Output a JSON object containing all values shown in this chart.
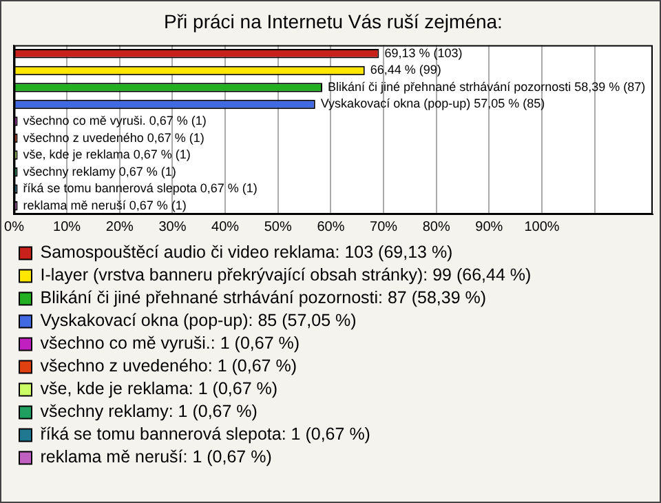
{
  "chart_data": {
    "type": "bar",
    "orientation": "horizontal",
    "title": "Při práci na Internetu Vás ruší zejména:",
    "categories": [
      null,
      null,
      null,
      null,
      null,
      null,
      null,
      null,
      null,
      null
    ],
    "series": [
      {
        "name": "Samospouštěcí audio či video reklama: 103 (69,13 %)",
        "color": "#c8201a",
        "values": [
          69.13,
          null,
          null,
          null,
          null,
          null,
          null,
          null,
          null,
          null
        ],
        "value_labels": [
          "69,13 % (103)",
          null,
          null,
          null,
          null,
          null,
          null,
          null,
          null,
          null
        ]
      },
      {
        "name": "I-layer (vrstva banneru překrývající obsah stránky): 99 (66,44 %)",
        "color": "#ffe600",
        "values": [
          null,
          66.44,
          null,
          null,
          null,
          null,
          null,
          null,
          null,
          null
        ],
        "value_labels": [
          null,
          "66,44 % (99)",
          null,
          null,
          null,
          null,
          null,
          null,
          null,
          null
        ]
      },
      {
        "name": "Blikání či jiné přehnané strhávání pozornosti: 87 (58,39 %)",
        "color": "#22b022",
        "values": [
          null,
          null,
          58.39,
          null,
          null,
          null,
          null,
          null,
          null,
          null
        ],
        "value_labels": [
          null,
          null,
          "Blikání či jiné přehnané strhávání pozornosti 58,39 % (87)",
          null,
          null,
          null,
          null,
          null,
          null,
          null
        ]
      },
      {
        "name": "Vyskakovací okna (pop-up): 85 (57,05 %)",
        "color": "#4169e1",
        "values": [
          null,
          null,
          null,
          57.05,
          null,
          null,
          null,
          null,
          null,
          null
        ],
        "value_labels": [
          null,
          null,
          null,
          "Vyskakovací okna (pop-up) 57,05 % (85)",
          null,
          null,
          null,
          null,
          null,
          null
        ]
      },
      {
        "name": "všechno co mě vyruši.: 1 (0,67 %)",
        "color": "#c020c0",
        "values": [
          null,
          null,
          null,
          null,
          0.67,
          null,
          null,
          null,
          null,
          null
        ],
        "value_labels": [
          null,
          null,
          null,
          null,
          "všechno co mě vyruši. 0,67 % (1)",
          null,
          null,
          null,
          null,
          null
        ]
      },
      {
        "name": "všechno z uvedeného: 1 (0,67 %)",
        "color": "#e04010",
        "values": [
          null,
          null,
          null,
          null,
          null,
          0.67,
          null,
          null,
          null,
          null
        ],
        "value_labels": [
          null,
          null,
          null,
          null,
          null,
          "všechno z uvedeného 0,67 % (1)",
          null,
          null,
          null,
          null
        ]
      },
      {
        "name": "vše, kde je reklama: 1 (0,67 %)",
        "color": "#ccff66",
        "values": [
          null,
          null,
          null,
          null,
          null,
          null,
          0.67,
          null,
          null,
          null
        ],
        "value_labels": [
          null,
          null,
          null,
          null,
          null,
          null,
          "vše, kde je reklama 0,67 % (1)",
          null,
          null,
          null
        ]
      },
      {
        "name": "všechny reklamy: 1 (0,67 %)",
        "color": "#20a060",
        "values": [
          null,
          null,
          null,
          null,
          null,
          null,
          null,
          0.67,
          null,
          null
        ],
        "value_labels": [
          null,
          null,
          null,
          null,
          null,
          null,
          null,
          "všechny reklamy 0,67 % (1)",
          null,
          null
        ]
      },
      {
        "name": "říká se tomu bannerová slepota: 1 (0,67 %)",
        "color": "#207890",
        "values": [
          null,
          null,
          null,
          null,
          null,
          null,
          null,
          null,
          0.67,
          null
        ],
        "value_labels": [
          null,
          null,
          null,
          null,
          null,
          null,
          null,
          null,
          "říká se tomu bannerová slepota 0,67 % (1)",
          null
        ]
      },
      {
        "name": "reklama mě neruší: 1 (0,67 %)",
        "color": "#c060c0",
        "values": [
          null,
          null,
          null,
          null,
          null,
          null,
          null,
          null,
          null,
          0.67
        ],
        "value_labels": [
          null,
          null,
          null,
          null,
          null,
          null,
          null,
          null,
          null,
          "reklama mě neruší 0,67 % (1)"
        ]
      }
    ],
    "xlim": [
      0,
      121
    ],
    "xticks": [
      {
        "value": 0,
        "label": "0%"
      },
      {
        "value": 10,
        "label": "10%"
      },
      {
        "value": 20,
        "label": "20%"
      },
      {
        "value": 30,
        "label": "30%"
      },
      {
        "value": 40,
        "label": "40%"
      },
      {
        "value": 50,
        "label": "50%"
      },
      {
        "value": 60,
        "label": "60%"
      },
      {
        "value": 70,
        "label": "70%"
      },
      {
        "value": 80,
        "label": "80%"
      },
      {
        "value": 90,
        "label": "90%"
      },
      {
        "value": 100,
        "label": "100%"
      },
      {
        "value": 110,
        "label": null
      }
    ],
    "grid": "x",
    "tick_labels": "x",
    "legend": "bottom"
  }
}
